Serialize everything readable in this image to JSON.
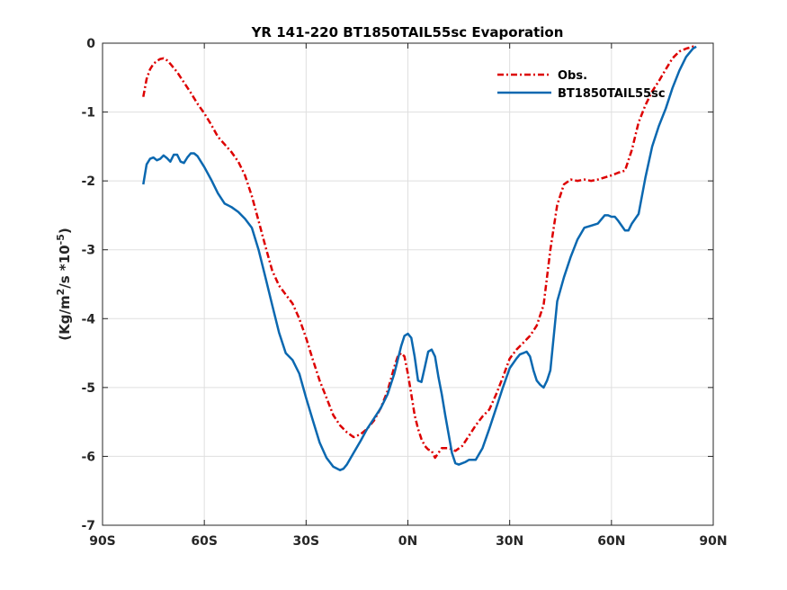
{
  "chart_data": {
    "type": "line",
    "title": "YR 141-220 BT1850TAIL55sc Evaporation",
    "ylabel_parts": {
      "pre": "(Kg/m",
      "sup1": "2",
      "mid": "/s *10",
      "sup2": "-5",
      "post": ")"
    },
    "xlabel": "",
    "xlim": [
      -90,
      90
    ],
    "ylim": [
      -7,
      0
    ],
    "x_ticks": [
      -90,
      -60,
      -30,
      0,
      30,
      60,
      90
    ],
    "x_tick_labels": [
      "90S",
      "60S",
      "30S",
      "0N",
      "30N",
      "60N",
      "90N"
    ],
    "y_ticks": [
      0,
      -1,
      -2,
      -3,
      -4,
      -5,
      -6,
      -7
    ],
    "y_tick_labels": [
      "0",
      "-1",
      "-2",
      "-3",
      "-4",
      "-5",
      "-6",
      "-7"
    ],
    "grid": true,
    "legend_position": "top-right",
    "series": [
      {
        "name": "Obs.",
        "color": "#dd0000",
        "dash": "dashdot",
        "x": [
          -78,
          -77,
          -76,
          -75,
          -74,
          -73,
          -72,
          -71,
          -70,
          -68,
          -66,
          -64,
          -62,
          -60,
          -58,
          -56,
          -54,
          -52,
          -50,
          -48,
          -46,
          -44,
          -42,
          -40,
          -38,
          -36,
          -34,
          -32,
          -30,
          -28,
          -26,
          -24,
          -22,
          -20,
          -18,
          -16,
          -14,
          -12,
          -10,
          -8,
          -6,
          -4,
          -3,
          -2,
          -1,
          0,
          1,
          2,
          3,
          4,
          5,
          6,
          7,
          8,
          9,
          10,
          12,
          14,
          16,
          18,
          20,
          22,
          24,
          26,
          28,
          30,
          32,
          34,
          36,
          38,
          40,
          42,
          44,
          46,
          48,
          50,
          52,
          54,
          56,
          58,
          60,
          62,
          64,
          66,
          68,
          70,
          72,
          74,
          76,
          78,
          80,
          82,
          84,
          85
        ],
        "y": [
          -0.78,
          -0.52,
          -0.38,
          -0.3,
          -0.26,
          -0.23,
          -0.22,
          -0.25,
          -0.3,
          -0.42,
          -0.57,
          -0.72,
          -0.88,
          -1.02,
          -1.18,
          -1.36,
          -1.47,
          -1.58,
          -1.72,
          -1.92,
          -2.22,
          -2.58,
          -2.95,
          -3.3,
          -3.52,
          -3.65,
          -3.78,
          -4.0,
          -4.28,
          -4.6,
          -4.9,
          -5.15,
          -5.4,
          -5.55,
          -5.65,
          -5.72,
          -5.68,
          -5.6,
          -5.48,
          -5.3,
          -5.05,
          -4.7,
          -4.55,
          -4.5,
          -4.55,
          -4.8,
          -5.1,
          -5.4,
          -5.6,
          -5.75,
          -5.85,
          -5.9,
          -5.92,
          -6.02,
          -5.95,
          -5.88,
          -5.88,
          -5.92,
          -5.85,
          -5.7,
          -5.55,
          -5.42,
          -5.32,
          -5.1,
          -4.85,
          -4.58,
          -4.45,
          -4.35,
          -4.25,
          -4.1,
          -3.8,
          -3.0,
          -2.35,
          -2.05,
          -1.98,
          -2.0,
          -1.98,
          -2.0,
          -1.98,
          -1.95,
          -1.92,
          -1.88,
          -1.85,
          -1.55,
          -1.15,
          -0.9,
          -0.7,
          -0.55,
          -0.38,
          -0.22,
          -0.12,
          -0.08,
          -0.05,
          -0.05
        ]
      },
      {
        "name": "BT1850TAIL55sc",
        "color": "#0b68b0",
        "dash": "solid",
        "x": [
          -78,
          -77,
          -76,
          -75,
          -74,
          -73,
          -72,
          -71,
          -70,
          -69,
          -68,
          -67,
          -66,
          -65,
          -64,
          -63,
          -62,
          -60,
          -58,
          -56,
          -54,
          -52,
          -50,
          -48,
          -46,
          -44,
          -42,
          -40,
          -38,
          -36,
          -34,
          -32,
          -30,
          -28,
          -26,
          -24,
          -22,
          -20,
          -19,
          -18,
          -16,
          -14,
          -12,
          -10,
          -8,
          -6,
          -4,
          -2,
          -1,
          0,
          1,
          2,
          3,
          4,
          5,
          6,
          7,
          8,
          9,
          10,
          11,
          12,
          13,
          14,
          15,
          16,
          17,
          18,
          20,
          22,
          24,
          26,
          28,
          30,
          32,
          33,
          34,
          35,
          36,
          37,
          38,
          39,
          40,
          41,
          42,
          44,
          46,
          48,
          50,
          52,
          54,
          56,
          58,
          59,
          60,
          61,
          62,
          63,
          64,
          65,
          66,
          67,
          68,
          70,
          72,
          74,
          76,
          78,
          80,
          82,
          84,
          85
        ],
        "y": [
          -2.05,
          -1.76,
          -1.68,
          -1.66,
          -1.7,
          -1.68,
          -1.63,
          -1.67,
          -1.72,
          -1.62,
          -1.62,
          -1.72,
          -1.74,
          -1.66,
          -1.6,
          -1.6,
          -1.64,
          -1.8,
          -1.98,
          -2.18,
          -2.33,
          -2.38,
          -2.45,
          -2.55,
          -2.68,
          -3.0,
          -3.4,
          -3.8,
          -4.2,
          -4.5,
          -4.6,
          -4.8,
          -5.15,
          -5.48,
          -5.8,
          -6.02,
          -6.15,
          -6.2,
          -6.18,
          -6.12,
          -5.95,
          -5.78,
          -5.6,
          -5.45,
          -5.3,
          -5.1,
          -4.8,
          -4.4,
          -4.25,
          -4.22,
          -4.28,
          -4.55,
          -4.9,
          -4.92,
          -4.7,
          -4.48,
          -4.45,
          -4.55,
          -4.85,
          -5.1,
          -5.4,
          -5.68,
          -5.95,
          -6.1,
          -6.12,
          -6.1,
          -6.08,
          -6.05,
          -6.05,
          -5.88,
          -5.6,
          -5.3,
          -5.0,
          -4.72,
          -4.58,
          -4.52,
          -4.5,
          -4.48,
          -4.55,
          -4.75,
          -4.9,
          -4.96,
          -5.0,
          -4.9,
          -4.75,
          -3.75,
          -3.4,
          -3.1,
          -2.85,
          -2.68,
          -2.65,
          -2.62,
          -2.5,
          -2.5,
          -2.52,
          -2.52,
          -2.58,
          -2.65,
          -2.72,
          -2.72,
          -2.62,
          -2.55,
          -2.48,
          -1.95,
          -1.5,
          -1.2,
          -0.95,
          -0.65,
          -0.4,
          -0.2,
          -0.08,
          -0.05
        ]
      }
    ]
  }
}
